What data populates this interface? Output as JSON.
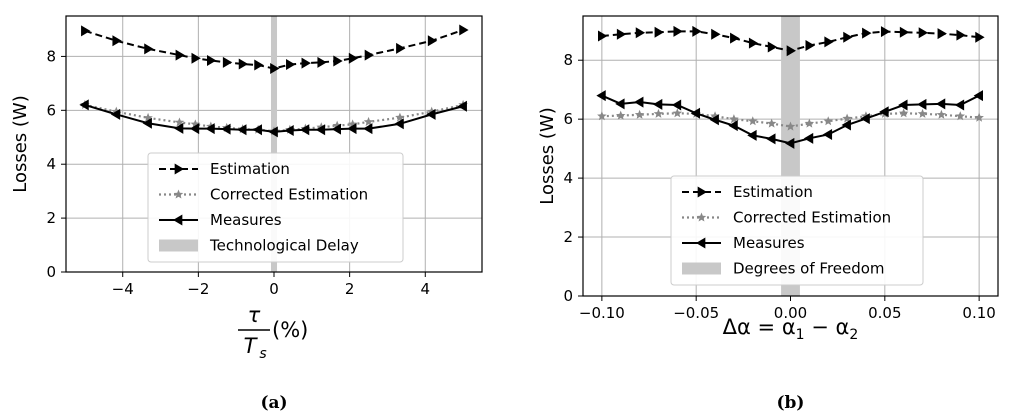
{
  "chart_data": [
    {
      "type": "line",
      "panel_label": "(a)",
      "ylabel": "Losses (W)",
      "xlabel": {
        "num": "τ",
        "den": "T",
        "den_sub": "s",
        "unit": "(%)"
      },
      "xlim": [
        -5.5,
        5.5
      ],
      "ylim": [
        0,
        9.5
      ],
      "xticks": [
        -4,
        -2,
        0,
        2,
        4
      ],
      "xtick_labels": [
        "−4",
        "−2",
        "0",
        "2",
        "4"
      ],
      "yticks": [
        0,
        2,
        4,
        6,
        8
      ],
      "ytick_labels": [
        "0",
        "2",
        "4",
        "6",
        "8"
      ],
      "grid": true,
      "band": {
        "name": "Technological Delay",
        "x0": -0.08,
        "x1": 0.08,
        "color": "#c8c8c8"
      },
      "legend_position": "lower-center",
      "x": [
        -5,
        -4.17,
        -3.33,
        -2.5,
        -2.08,
        -1.67,
        -1.25,
        -0.83,
        -0.42,
        0,
        0.42,
        0.83,
        1.25,
        1.67,
        2.08,
        2.5,
        3.33,
        4.17,
        5
      ],
      "series": [
        {
          "name": "Estimation",
          "color": "#000000",
          "style": "dashed",
          "marker": "tri-right",
          "values": [
            8.95,
            8.58,
            8.28,
            8.05,
            7.93,
            7.85,
            7.78,
            7.72,
            7.68,
            7.55,
            7.7,
            7.75,
            7.78,
            7.83,
            7.93,
            8.05,
            8.3,
            8.58,
            8.98
          ]
        },
        {
          "name": "Corrected Estimation",
          "color": "#888888",
          "style": "dotted",
          "marker": "star",
          "values": [
            6.2,
            5.95,
            5.72,
            5.55,
            5.48,
            5.4,
            5.35,
            5.3,
            5.28,
            5.22,
            5.28,
            5.32,
            5.37,
            5.43,
            5.48,
            5.57,
            5.73,
            5.95,
            6.2
          ]
        },
        {
          "name": "Measures",
          "color": "#000000",
          "style": "solid",
          "marker": "tri-left",
          "values": [
            6.2,
            5.85,
            5.52,
            5.33,
            5.32,
            5.32,
            5.3,
            5.28,
            5.28,
            5.2,
            5.25,
            5.28,
            5.28,
            5.3,
            5.32,
            5.32,
            5.5,
            5.85,
            6.15
          ]
        }
      ]
    },
    {
      "type": "line",
      "panel_label": "(b)",
      "ylabel": "Losses (W)",
      "xlabel": {
        "delta": "Δα = ",
        "a1": "α",
        "s1": "1",
        "minus": " − ",
        "a2": "α",
        "s2": "2"
      },
      "xlim": [
        -0.11,
        0.11
      ],
      "ylim": [
        0,
        9.5
      ],
      "xticks": [
        -0.1,
        -0.05,
        0.0,
        0.05,
        0.1
      ],
      "xtick_labels": [
        "−0.10",
        "−0.05",
        "0.00",
        "0.05",
        "0.10"
      ],
      "yticks": [
        0,
        2,
        4,
        6,
        8
      ],
      "ytick_labels": [
        "0",
        "2",
        "4",
        "6",
        "8"
      ],
      "grid": true,
      "band": {
        "name": "Degrees of Freedom",
        "x0": -0.005,
        "x1": 0.005,
        "color": "#c8c8c8"
      },
      "legend_position": "lower-center",
      "x": [
        -0.1,
        -0.09,
        -0.08,
        -0.07,
        -0.06,
        -0.05,
        -0.04,
        -0.03,
        -0.02,
        -0.01,
        0.0,
        0.01,
        0.02,
        0.03,
        0.04,
        0.05,
        0.06,
        0.07,
        0.08,
        0.09,
        0.1
      ],
      "series": [
        {
          "name": "Estimation",
          "color": "#000000",
          "style": "dashed",
          "marker": "tri-right",
          "values": [
            8.82,
            8.88,
            8.93,
            8.95,
            8.98,
            8.98,
            8.88,
            8.75,
            8.58,
            8.45,
            8.32,
            8.5,
            8.62,
            8.78,
            8.92,
            8.97,
            8.95,
            8.93,
            8.9,
            8.85,
            8.78
          ]
        },
        {
          "name": "Corrected Estimation",
          "color": "#888888",
          "style": "dotted",
          "marker": "star",
          "values": [
            6.1,
            6.12,
            6.15,
            6.18,
            6.2,
            6.18,
            6.1,
            6.0,
            5.93,
            5.85,
            5.75,
            5.85,
            5.93,
            6.02,
            6.1,
            6.18,
            6.2,
            6.18,
            6.15,
            6.1,
            6.05
          ]
        },
        {
          "name": "Measures",
          "color": "#000000",
          "style": "solid",
          "marker": "tri-left",
          "values": [
            6.8,
            6.52,
            6.58,
            6.5,
            6.48,
            6.2,
            5.98,
            5.78,
            5.45,
            5.33,
            5.18,
            5.35,
            5.48,
            5.8,
            6.02,
            6.25,
            6.48,
            6.5,
            6.52,
            6.48,
            6.8
          ]
        }
      ]
    }
  ]
}
